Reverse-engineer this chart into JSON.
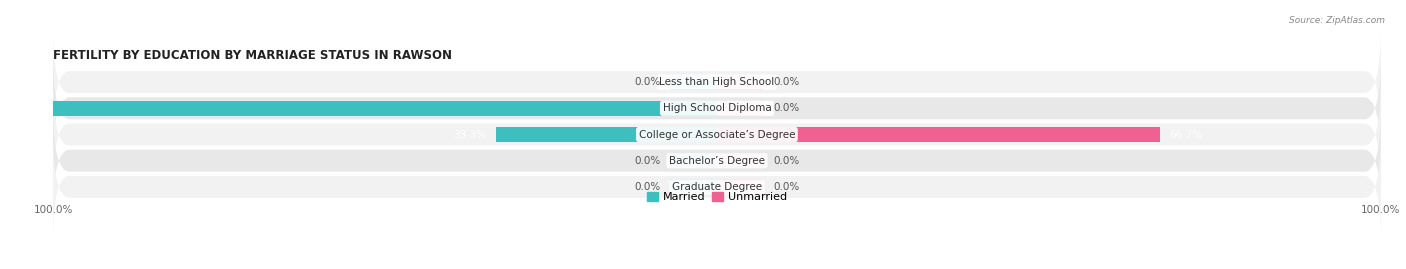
{
  "title": "FERTILITY BY EDUCATION BY MARRIAGE STATUS IN RAWSON",
  "source": "Source: ZipAtlas.com",
  "categories": [
    "Less than High School",
    "High School Diploma",
    "College or Associate’s Degree",
    "Bachelor’s Degree",
    "Graduate Degree"
  ],
  "married_pct": [
    0.0,
    100.0,
    33.3,
    0.0,
    0.0
  ],
  "unmarried_pct": [
    0.0,
    0.0,
    66.7,
    0.0,
    0.0
  ],
  "married_color": "#3dbfbf",
  "unmarried_color": "#f06090",
  "married_light": "#aadde0",
  "unmarried_light": "#f5b8cb",
  "label_fontsize": 7.5,
  "title_fontsize": 8.5,
  "legend_fontsize": 8,
  "axis_range": 100.0,
  "bar_height": 0.58,
  "placeholder_pct": 7.0,
  "row_colors": [
    "#f2f2f2",
    "#e8e8e8",
    "#f2f2f2",
    "#e8e8e8",
    "#f2f2f2"
  ]
}
